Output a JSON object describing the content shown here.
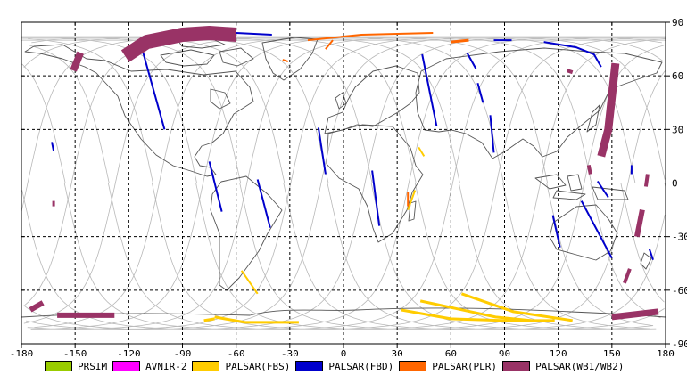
{
  "chart_data": {
    "type": "map",
    "xlim": [
      -180,
      180
    ],
    "ylim": [
      -90,
      90
    ],
    "x_ticks": [
      "-180",
      "-150",
      "-120",
      "-90",
      "-60",
      "-30",
      "0",
      "30",
      "60",
      "90",
      "120",
      "150",
      "180"
    ],
    "y_ticks": [
      "90",
      "60",
      "30",
      "0",
      "-30",
      "-60",
      "-90"
    ],
    "grid": "dashed, every 30 degrees",
    "legend_position": "bottom",
    "legend": [
      {
        "label": "PRSIM",
        "color": "#99cc00"
      },
      {
        "label": "AVNIR-2",
        "color": "#ff00ff"
      },
      {
        "label": "PALSAR(FBS)",
        "color": "#ffcc00"
      },
      {
        "label": "PALSAR(FBD)",
        "color": "#0000cc"
      },
      {
        "label": "PALSAR(PLR)",
        "color": "#ff6600"
      },
      {
        "label": "PALSAR(WB1/WB2)",
        "color": "#993366"
      }
    ],
    "swaths": [
      {
        "mode": "PALSAR(WB1/WB2)",
        "width": 8,
        "points": [
          [
            -147,
            73
          ],
          [
            -149,
            68
          ],
          [
            -151,
            63
          ]
        ]
      },
      {
        "mode": "PALSAR(WB1/WB2)",
        "width": 16,
        "points": [
          [
            -122,
            71
          ],
          [
            -110,
            79
          ],
          [
            -90,
            83
          ],
          [
            -75,
            84
          ],
          [
            -60,
            83
          ]
        ]
      },
      {
        "mode": "PALSAR(WB1/WB2)",
        "width": 6,
        "points": [
          [
            -168,
            -67
          ],
          [
            -175,
            -71
          ]
        ]
      },
      {
        "mode": "PALSAR(WB1/WB2)",
        "width": 6,
        "points": [
          [
            -160,
            -74
          ],
          [
            -128,
            -74
          ]
        ]
      },
      {
        "mode": "PALSAR(WB1/WB2)",
        "width": 3,
        "points": [
          [
            -162,
            -13
          ],
          [
            -162,
            -10
          ]
        ]
      },
      {
        "mode": "PALSAR(WB1/WB2)",
        "width": 9,
        "points": [
          [
            152,
            67
          ],
          [
            148,
            30
          ],
          [
            144,
            15
          ]
        ]
      },
      {
        "mode": "PALSAR(WB1/WB2)",
        "width": 4,
        "points": [
          [
            125,
            63
          ],
          [
            128,
            62
          ]
        ]
      },
      {
        "mode": "PALSAR(WB1/WB2)",
        "width": 4,
        "points": [
          [
            137,
            10
          ],
          [
            138,
            5
          ]
        ]
      },
      {
        "mode": "PALSAR(WB1/WB2)",
        "width": 4,
        "points": [
          [
            170,
            5
          ],
          [
            169,
            -2
          ]
        ]
      },
      {
        "mode": "PALSAR(WB1/WB2)",
        "width": 6,
        "points": [
          [
            167,
            -15
          ],
          [
            164,
            -30
          ]
        ]
      },
      {
        "mode": "PALSAR(WB1/WB2)",
        "width": 4,
        "points": [
          [
            160,
            -48
          ],
          [
            157,
            -56
          ]
        ]
      },
      {
        "mode": "PALSAR(WB1/WB2)",
        "width": 7,
        "points": [
          [
            150,
            -75
          ],
          [
            176,
            -72
          ]
        ]
      },
      {
        "mode": "PALSAR(FBD)",
        "width": 2,
        "points": [
          [
            -112,
            73
          ],
          [
            -100,
            30
          ]
        ]
      },
      {
        "mode": "PALSAR(FBD)",
        "width": 2,
        "points": [
          [
            -75,
            12
          ],
          [
            -68,
            -16
          ]
        ]
      },
      {
        "mode": "PALSAR(FBD)",
        "width": 2,
        "points": [
          [
            -48,
            2
          ],
          [
            -41,
            -25
          ]
        ]
      },
      {
        "mode": "PALSAR(FBD)",
        "width": 2,
        "points": [
          [
            -163,
            23
          ],
          [
            -162,
            18
          ]
        ]
      },
      {
        "mode": "PALSAR(FBD)",
        "width": 2,
        "points": [
          [
            -14,
            31
          ],
          [
            -10,
            5
          ]
        ]
      },
      {
        "mode": "PALSAR(FBD)",
        "width": 2,
        "points": [
          [
            16,
            7
          ],
          [
            20,
            -24
          ]
        ]
      },
      {
        "mode": "PALSAR(FBD)",
        "width": 2,
        "points": [
          [
            44,
            72
          ],
          [
            52,
            32
          ]
        ]
      },
      {
        "mode": "PALSAR(FBD)",
        "width": 2,
        "points": [
          [
            69,
            73
          ],
          [
            74,
            64
          ]
        ]
      },
      {
        "mode": "PALSAR(FBD)",
        "width": 2,
        "points": [
          [
            75,
            56
          ],
          [
            78,
            45
          ]
        ]
      },
      {
        "mode": "PALSAR(FBD)",
        "width": 2,
        "points": [
          [
            82,
            38
          ],
          [
            84,
            17
          ]
        ]
      },
      {
        "mode": "PALSAR(FBD)",
        "width": 2,
        "points": [
          [
            112,
            79
          ],
          [
            130,
            76
          ],
          [
            140,
            72
          ],
          [
            144,
            65
          ]
        ]
      },
      {
        "mode": "PALSAR(FBD)",
        "width": 2,
        "points": [
          [
            84,
            80
          ],
          [
            94,
            80
          ]
        ]
      },
      {
        "mode": "PALSAR(FBD)",
        "width": 2,
        "points": [
          [
            -60,
            84
          ],
          [
            -40,
            83
          ]
        ]
      },
      {
        "mode": "PALSAR(FBD)",
        "width": 2,
        "points": [
          [
            133,
            -10
          ],
          [
            150,
            -42
          ]
        ]
      },
      {
        "mode": "PALSAR(FBD)",
        "width": 2,
        "points": [
          [
            117,
            -18
          ],
          [
            121,
            -36
          ]
        ]
      },
      {
        "mode": "PALSAR(FBD)",
        "width": 2,
        "points": [
          [
            142,
            1
          ],
          [
            148,
            -8
          ]
        ]
      },
      {
        "mode": "PALSAR(FBD)",
        "width": 2,
        "points": [
          [
            161,
            10
          ],
          [
            161,
            5
          ]
        ]
      },
      {
        "mode": "PALSAR(FBD)",
        "width": 2,
        "points": [
          [
            171,
            -37
          ],
          [
            173,
            -43
          ]
        ]
      },
      {
        "mode": "PALSAR(FBS)",
        "width": 2,
        "points": [
          [
            -57,
            -49
          ],
          [
            -48,
            -62
          ]
        ]
      },
      {
        "mode": "PALSAR(FBS)",
        "width": 3,
        "points": [
          [
            -72,
            -75
          ],
          [
            -55,
            -78
          ],
          [
            -25,
            -78
          ]
        ]
      },
      {
        "mode": "PALSAR(FBS)",
        "width": 3,
        "points": [
          [
            -78,
            -77
          ],
          [
            -72,
            -76
          ]
        ]
      },
      {
        "mode": "PALSAR(FBS)",
        "width": 3,
        "points": [
          [
            32,
            -71
          ],
          [
            60,
            -76
          ],
          [
            90,
            -77
          ]
        ]
      },
      {
        "mode": "PALSAR(FBS)",
        "width": 3,
        "points": [
          [
            43,
            -66
          ],
          [
            85,
            -75
          ],
          [
            105,
            -77
          ]
        ]
      },
      {
        "mode": "PALSAR(FBS)",
        "width": 3,
        "points": [
          [
            66,
            -62
          ],
          [
            95,
            -72
          ],
          [
            128,
            -77
          ]
        ]
      },
      {
        "mode": "PALSAR(FBS)",
        "width": 3,
        "points": [
          [
            90,
            -77
          ],
          [
            118,
            -77
          ]
        ]
      },
      {
        "mode": "PALSAR(FBS)",
        "width": 2,
        "points": [
          [
            40,
            -4
          ],
          [
            36,
            -15
          ]
        ]
      },
      {
        "mode": "PALSAR(FBS)",
        "width": 2,
        "points": [
          [
            42,
            20
          ],
          [
            45,
            15
          ]
        ]
      },
      {
        "mode": "PALSAR(PLR)",
        "width": 2,
        "points": [
          [
            -20,
            80
          ],
          [
            10,
            83
          ],
          [
            50,
            84
          ]
        ]
      },
      {
        "mode": "PALSAR(PLR)",
        "width": 2,
        "points": [
          [
            -6,
            80
          ],
          [
            -10,
            75
          ]
        ]
      },
      {
        "mode": "PALSAR(PLR)",
        "width": 2,
        "points": [
          [
            -34,
            69
          ],
          [
            -31,
            68
          ]
        ]
      },
      {
        "mode": "PALSAR(PLR)",
        "width": 3,
        "points": [
          [
            60,
            79
          ],
          [
            70,
            80
          ]
        ]
      },
      {
        "mode": "PALSAR(PLR)",
        "width": 2,
        "points": [
          [
            36,
            -5
          ],
          [
            36,
            -13
          ]
        ]
      }
    ]
  }
}
